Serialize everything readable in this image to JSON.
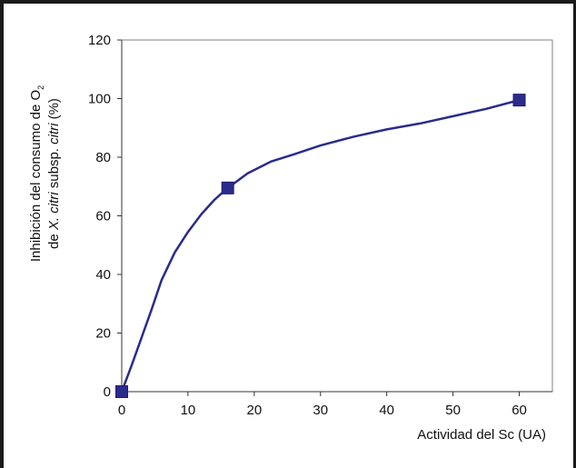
{
  "chart_data": {
    "type": "line",
    "title": "",
    "xlabel": "Actividad del Sc (UA)",
    "ylabel_line1": {
      "pre": "Inhibición del consumo de O",
      "sub": "2"
    },
    "ylabel_line2": {
      "pre": "de ",
      "italic1": "X. citri",
      "mid": " subsp. ",
      "italic2": "citri",
      "post": " (%)"
    },
    "xlim": [
      0,
      65
    ],
    "ylim": [
      0,
      120
    ],
    "xticks": [
      0,
      10,
      20,
      30,
      40,
      50,
      60
    ],
    "yticks": [
      0,
      20,
      40,
      60,
      80,
      100,
      120
    ],
    "markers": {
      "x": [
        0,
        16,
        60
      ],
      "y": [
        0,
        69.5,
        99.5
      ]
    },
    "curve": {
      "x": [
        0,
        1.5,
        3,
        4.5,
        6,
        8,
        10,
        12,
        14,
        16,
        19,
        22.5,
        26,
        30,
        35,
        40,
        45,
        50,
        55,
        60
      ],
      "y": [
        0,
        9,
        18.5,
        28,
        38,
        47.5,
        54.5,
        60.5,
        65.5,
        69.5,
        74.5,
        78.5,
        81,
        84,
        87,
        89.5,
        91.5,
        94,
        96.5,
        99.5
      ]
    },
    "colors": {
      "line": "#2b2b8c",
      "marker": "#2b2b8c",
      "axis": "#808080"
    }
  }
}
